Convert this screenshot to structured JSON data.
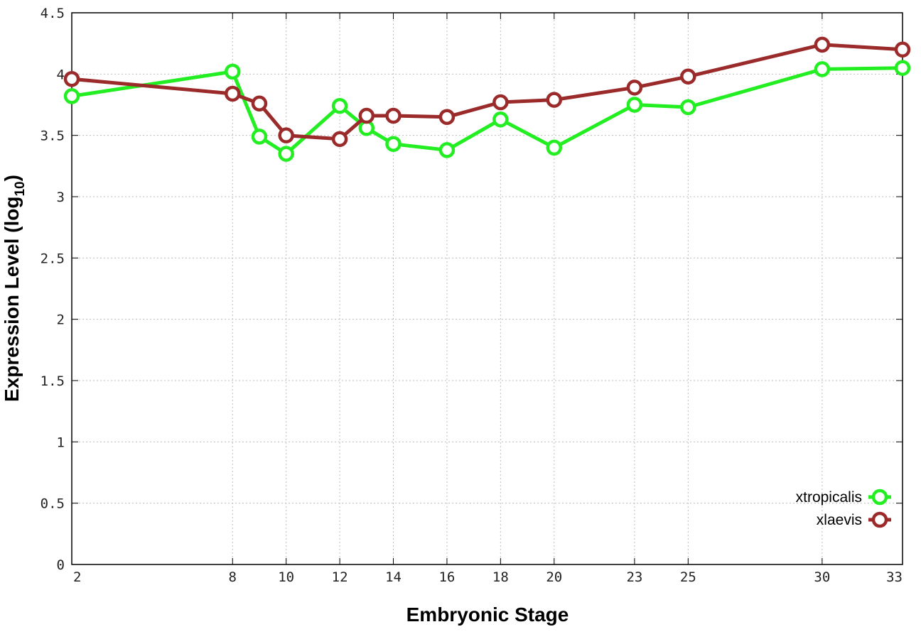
{
  "chart_data": {
    "type": "line",
    "xlabel": "Embryonic Stage",
    "ylabel_main": "Expression Level (log",
    "ylabel_sub": "10",
    "ylabel_close": ")",
    "ylim": [
      0,
      4.5
    ],
    "y_ticks": [
      "0",
      "0.5",
      "1",
      "1.5",
      "2",
      "2.5",
      "3",
      "3.5",
      "4",
      "4.5"
    ],
    "y_tick_values": [
      0,
      0.5,
      1,
      1.5,
      2,
      2.5,
      3,
      3.5,
      4,
      4.5
    ],
    "categories": [
      "2",
      "8",
      "9",
      "10",
      "12",
      "13",
      "14",
      "16",
      "18",
      "20",
      "23",
      "25",
      "30",
      "33"
    ],
    "x_ticks": [
      "2",
      "8",
      "10",
      "12",
      "14",
      "16",
      "18",
      "20",
      "23",
      "25",
      "30",
      "33"
    ],
    "grid": true,
    "legend_position": "bottom-right",
    "series": [
      {
        "name": "xtropicalis",
        "color": "#22ee22",
        "values": [
          3.82,
          4.02,
          3.49,
          3.35,
          3.74,
          3.56,
          3.43,
          3.38,
          3.63,
          3.4,
          3.75,
          3.73,
          4.04,
          4.05
        ]
      },
      {
        "name": "xlaevis",
        "color": "#9b2a2a",
        "values": [
          3.96,
          3.84,
          3.76,
          3.5,
          3.47,
          3.66,
          3.66,
          3.65,
          3.77,
          3.79,
          3.89,
          3.98,
          4.24,
          4.2
        ]
      }
    ]
  }
}
